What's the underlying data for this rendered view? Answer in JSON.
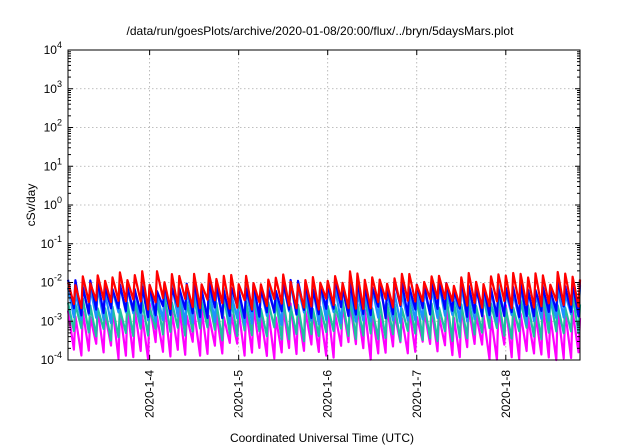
{
  "chart_data": {
    "type": "line",
    "title": "/data/run/goesPlots/archive/2020-01-08/20:00/flux/../bryn/5daysMars.plot",
    "xlabel": "Coordinated Universal Time (UTC)",
    "ylabel": "cSv/day",
    "y_scale": "log",
    "ylim": [
      0.0001,
      10000
    ],
    "y_ticks": [
      {
        "base": "10",
        "exp": "4"
      },
      {
        "base": "10",
        "exp": "3"
      },
      {
        "base": "10",
        "exp": "2"
      },
      {
        "base": "10",
        "exp": "1"
      },
      {
        "base": "10",
        "exp": "0"
      },
      {
        "base": "10",
        "exp": "-1"
      },
      {
        "base": "10",
        "exp": "-2"
      },
      {
        "base": "10",
        "exp": "-3"
      },
      {
        "base": "10",
        "exp": "-4"
      }
    ],
    "xlim": [
      "2020-01-03 02:00",
      "2020-01-08 20:00"
    ],
    "x_ticks": [
      "2020-1-4",
      "2020-1-5",
      "2020-1-6",
      "2020-1-7",
      "2020-1-8"
    ],
    "grid": true,
    "sawtooth_period_hours": 2,
    "series": [
      {
        "color": "#ff0000",
        "peak": [
          0.008,
          0.02
        ],
        "trough": [
          0.002,
          0.004
        ]
      },
      {
        "color": "#0000ff",
        "peak": [
          0.006,
          0.012
        ],
        "trough": [
          0.0012,
          0.0025
        ]
      },
      {
        "color": "#1e90ff",
        "peak": [
          0.005,
          0.01
        ],
        "trough": [
          0.0008,
          0.0018
        ]
      },
      {
        "color": "#20c0a0",
        "peak": [
          0.002,
          0.005
        ],
        "trough": [
          0.0003,
          0.0007
        ]
      },
      {
        "color": "#ff00ff",
        "peak": [
          0.0012,
          0.003
        ],
        "trough": [
          0.0001,
          0.0003
        ]
      }
    ]
  }
}
